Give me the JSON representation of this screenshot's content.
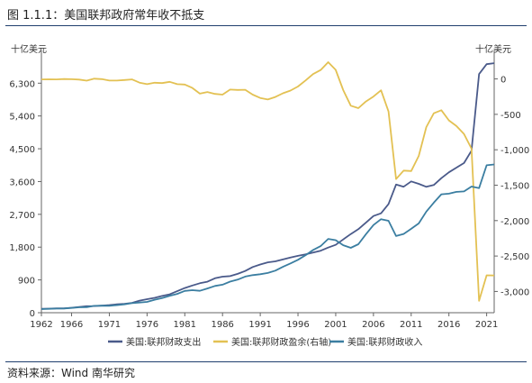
{
  "figure": {
    "title": "图 1.1.1：美国联邦政府常年收不抵支",
    "source": "资料来源：Wind 南华研究"
  },
  "chart_data": {
    "type": "line",
    "title": "",
    "left_axis": {
      "unit_label": "十亿美元",
      "range": [
        0,
        7000
      ],
      "ticks": [
        0,
        900,
        1800,
        2700,
        3600,
        4500,
        5400,
        6300
      ],
      "tick_labels": [
        "0",
        "900",
        "1,800",
        "2,700",
        "3,600",
        "4,500",
        "5,400",
        "6,300"
      ]
    },
    "right_axis": {
      "unit_label": "十亿美元",
      "range": [
        -3300,
        300
      ],
      "ticks": [
        0,
        -500,
        -1000,
        -1500,
        -2000,
        -2500,
        -3000
      ],
      "tick_labels": [
        "0",
        "-500",
        "-1,000",
        "-1,500",
        "-2,000",
        "-2,500",
        "-3,000"
      ]
    },
    "x_axis": {
      "range": [
        1962,
        2022
      ],
      "ticks": [
        1962,
        1966,
        1971,
        1976,
        1981,
        1986,
        1991,
        1996,
        2001,
        2006,
        2011,
        2016,
        2021
      ],
      "tick_labels": [
        "1962",
        "1966",
        "1971",
        "1976",
        "1981",
        "1986",
        "1991",
        "1996",
        "2001",
        "2006",
        "2011",
        "2016",
        "2021"
      ]
    },
    "legend_position": "bottom",
    "grid": false,
    "x": [
      1962,
      1963,
      1964,
      1965,
      1966,
      1967,
      1968,
      1969,
      1970,
      1971,
      1972,
      1973,
      1974,
      1975,
      1976,
      1977,
      1978,
      1979,
      1980,
      1981,
      1982,
      1983,
      1984,
      1985,
      1986,
      1987,
      1988,
      1989,
      1990,
      1991,
      1992,
      1993,
      1994,
      1995,
      1996,
      1997,
      1998,
      1999,
      2000,
      2001,
      2002,
      2003,
      2004,
      2005,
      2006,
      2007,
      2008,
      2009,
      2010,
      2011,
      2012,
      2013,
      2014,
      2015,
      2016,
      2017,
      2018,
      2019,
      2020,
      2021,
      2022
    ],
    "series": [
      {
        "name": "美国:联邦财政支出",
        "color": "#4a5a8a",
        "axis": "left",
        "values": [
          107,
          111,
          119,
          118,
          135,
          158,
          178,
          184,
          196,
          210,
          231,
          246,
          269,
          332,
          372,
          409,
          459,
          504,
          591,
          678,
          746,
          808,
          852,
          946,
          990,
          1004,
          1065,
          1144,
          1253,
          1324,
          1382,
          1410,
          1462,
          1516,
          1560,
          1601,
          1653,
          1702,
          1789,
          1863,
          2011,
          2160,
          2293,
          2472,
          2655,
          2729,
          2983,
          3518,
          3457,
          3603,
          3537,
          3455,
          3506,
          3692,
          3853,
          3982,
          4109,
          4447,
          6550,
          6822,
          6850
        ]
      },
      {
        "name": "美国:联邦财政盈余(右轴)",
        "color": "#e3c153",
        "axis": "right",
        "values": [
          -7,
          -5,
          -6,
          -1,
          -4,
          -9,
          -25,
          3,
          -3,
          -23,
          -23,
          -15,
          -6,
          -53,
          -74,
          -54,
          -59,
          -41,
          -74,
          -79,
          -128,
          -208,
          -185,
          -212,
          -221,
          -150,
          -155,
          -153,
          -221,
          -269,
          -290,
          -255,
          -203,
          -164,
          -107,
          -22,
          69,
          126,
          236,
          128,
          -158,
          -378,
          -413,
          -318,
          -248,
          -161,
          -459,
          -1413,
          -1294,
          -1300,
          -1087,
          -680,
          -485,
          -442,
          -585,
          -665,
          -779,
          -984,
          -3132,
          -2772,
          -2775
        ]
      },
      {
        "name": "美国:联邦财政收入",
        "color": "#3b7ea1",
        "axis": "left",
        "values": [
          100,
          106,
          113,
          117,
          131,
          149,
          153,
          187,
          193,
          187,
          207,
          231,
          263,
          279,
          298,
          356,
          400,
          463,
          517,
          599,
          618,
          601,
          666,
          734,
          769,
          854,
          909,
          991,
          1032,
          1055,
          1091,
          1154,
          1259,
          1352,
          1453,
          1579,
          1722,
          1828,
          2025,
          1991,
          1853,
          1782,
          1880,
          2154,
          2407,
          2568,
          2524,
          2105,
          2163,
          2303,
          2450,
          2775,
          3021,
          3250,
          3268,
          3316,
          3330,
          3463,
          3421,
          4047,
          4070
        ]
      }
    ]
  }
}
